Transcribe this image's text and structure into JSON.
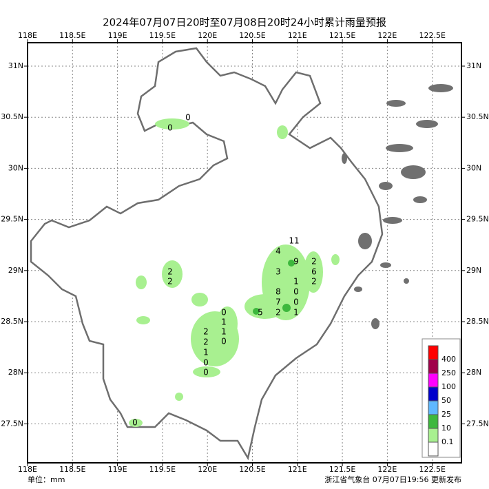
{
  "title": "2024年07月07日20时至07月08日20时24小时累计雨量预报",
  "lon_ticks": [
    "118E",
    "118.5E",
    "119E",
    "119.5E",
    "120E",
    "120.5E",
    "121E",
    "121.5E",
    "122E",
    "122.5E"
  ],
  "lat_ticks": [
    "31N",
    "30.5N",
    "30N",
    "29.5N",
    "29N",
    "28.5N",
    "28N",
    "27.5N"
  ],
  "legend": {
    "levels": [
      "400",
      "250",
      "100",
      "50",
      "25",
      "10",
      "0.1"
    ]
  },
  "stations": [
    "0",
    "0",
    "2",
    "2",
    "0",
    "1",
    "1",
    "0",
    "2",
    "2",
    "1",
    "0",
    "0",
    "11",
    "4",
    "9",
    "2",
    "6",
    "2",
    "3",
    "1",
    "0",
    "0",
    "1",
    "8",
    "7",
    "2",
    "5",
    "0"
  ],
  "footer": {
    "unit": "单位：mm",
    "issuer": "浙江省气象台 07月07日19:56 更新发布"
  }
}
